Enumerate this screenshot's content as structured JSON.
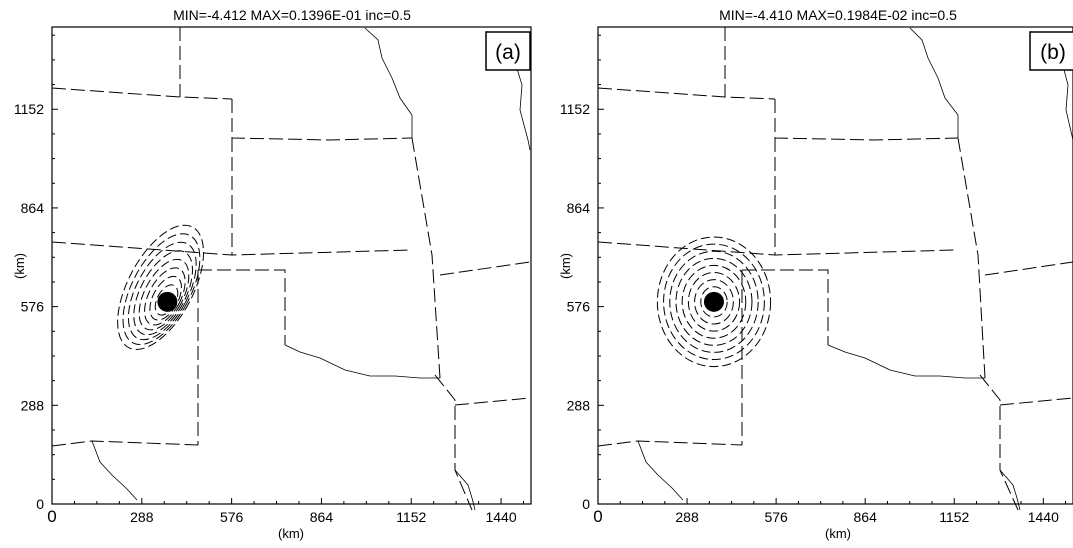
{
  "chart_data": [
    {
      "type": "contour",
      "title": "MIN=-4.412 MAX=0.1396E-01 inc=0.5",
      "panel_label": "(a)",
      "xlabel": "(km)",
      "ylabel": "(km)",
      "xlim": [
        0,
        1536
      ],
      "ylim": [
        0,
        1392
      ],
      "x_ticks": [
        "0",
        "288",
        "576",
        "864",
        "1152",
        "1440"
      ],
      "y_ticks": [
        "0",
        "288",
        "576",
        "864",
        "1152"
      ],
      "min": -4.412,
      "max": 0.01396,
      "inc": 0.5,
      "center_km": [
        370,
        590
      ],
      "shape": "elongated"
    },
    {
      "type": "contour",
      "title": "MIN=-4.410 MAX=0.1984E-02 inc=0.5",
      "panel_label": "(b)",
      "xlabel": "(km)",
      "ylabel": "(km)",
      "xlim": [
        0,
        1536
      ],
      "ylim": [
        0,
        1392
      ],
      "x_ticks": [
        "0",
        "288",
        "576",
        "864",
        "1152",
        "1440"
      ],
      "y_ticks": [
        "0",
        "288",
        "576",
        "864",
        "1152"
      ],
      "min": -4.41,
      "max": 0.001984,
      "inc": 0.5,
      "center_km": [
        375,
        590
      ],
      "shape": "circular"
    }
  ]
}
